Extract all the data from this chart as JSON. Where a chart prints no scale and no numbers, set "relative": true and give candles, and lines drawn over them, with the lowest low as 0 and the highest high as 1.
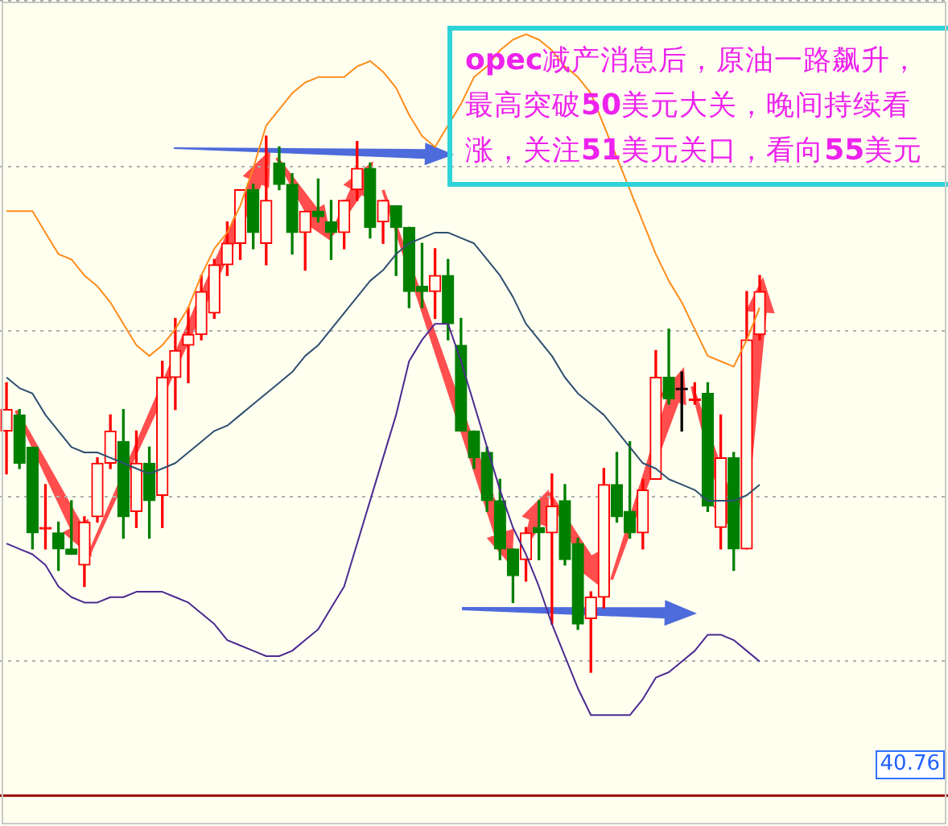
{
  "chart_data": {
    "type": "candlestick",
    "relative": true,
    "grid": "y",
    "legend": false,
    "marker": "none",
    "categories": [
      null,
      null,
      null,
      null,
      null,
      null,
      null,
      null,
      null,
      null,
      null,
      null,
      null,
      null,
      null,
      null,
      null,
      null,
      null,
      null,
      null,
      null,
      null,
      null,
      null,
      null,
      null,
      null,
      null,
      null,
      null,
      null,
      null,
      null,
      null,
      null,
      null,
      null,
      null,
      null,
      null,
      null,
      null,
      null,
      null,
      null,
      null,
      null,
      null,
      null,
      null,
      null,
      null,
      null,
      null,
      null,
      null,
      null,
      null
    ],
    "ohlc": [
      [
        0.45,
        0.54,
        0.37,
        0.49
      ],
      [
        0.48,
        0.49,
        0.38,
        0.39
      ],
      [
        0.42,
        0.42,
        0.23,
        0.26
      ],
      [
        0.27,
        0.35,
        0.23,
        0.27
      ],
      [
        0.26,
        0.28,
        0.19,
        0.23
      ],
      [
        0.23,
        0.32,
        0.22,
        0.22
      ],
      [
        0.2,
        0.29,
        0.16,
        0.28
      ],
      [
        0.29,
        0.4,
        0.28,
        0.39
      ],
      [
        0.39,
        0.48,
        0.38,
        0.45
      ],
      [
        0.43,
        0.49,
        0.25,
        0.29
      ],
      [
        0.3,
        0.45,
        0.27,
        0.39
      ],
      [
        0.39,
        0.42,
        0.25,
        0.32
      ],
      [
        0.33,
        0.58,
        0.27,
        0.55
      ],
      [
        0.55,
        0.66,
        0.49,
        0.6
      ],
      [
        0.61,
        0.68,
        0.54,
        0.63
      ],
      [
        0.63,
        0.74,
        0.62,
        0.71
      ],
      [
        0.67,
        0.77,
        0.66,
        0.76
      ],
      [
        0.76,
        0.84,
        0.74,
        0.8
      ],
      [
        0.8,
        0.9,
        0.77,
        0.9
      ],
      [
        0.9,
        0.91,
        0.79,
        0.82
      ],
      [
        0.8,
        1,
        0.76,
        0.88
      ],
      [
        0.95,
        0.98,
        0.9,
        0.91
      ],
      [
        0.91,
        0.93,
        0.78,
        0.82
      ],
      [
        0.82,
        0.86,
        0.75,
        0.86
      ],
      [
        0.86,
        0.92,
        0.84,
        0.85
      ],
      [
        0.84,
        0.88,
        0.77,
        0.82
      ],
      [
        0.82,
        0.88,
        0.79,
        0.88
      ],
      [
        0.9,
        0.99,
        0.88,
        0.94
      ],
      [
        0.94,
        0.95,
        0.81,
        0.83
      ],
      [
        0.84,
        0.88,
        0.8,
        0.88
      ],
      [
        0.87,
        0.87,
        0.74,
        0.83
      ],
      [
        0.83,
        0.83,
        0.68,
        0.71
      ],
      [
        0.72,
        0.8,
        0.68,
        0.71
      ],
      [
        0.71,
        0.79,
        0.66,
        0.74
      ],
      [
        0.74,
        0.77,
        0.62,
        0.65
      ],
      [
        0.61,
        0.66,
        0.45,
        0.45
      ],
      [
        0.45,
        0.45,
        0.38,
        0.4
      ],
      [
        0.41,
        0.42,
        0.3,
        0.32
      ],
      [
        0.32,
        0.36,
        0.21,
        0.23
      ],
      [
        0.23,
        0.23,
        0.13,
        0.18
      ],
      [
        0.21,
        0.27,
        0.17,
        0.26
      ],
      [
        0.27,
        0.32,
        0.21,
        0.26
      ],
      [
        0.26,
        0.37,
        0.09,
        0.31
      ],
      [
        0.32,
        0.35,
        0.2,
        0.21
      ],
      [
        0.24,
        0.25,
        0.08,
        0.09
      ],
      [
        0.1,
        0.15,
        0,
        0.14
      ],
      [
        0.14,
        0.38,
        0.12,
        0.35
      ],
      [
        0.35,
        0.41,
        0.28,
        0.29
      ],
      [
        0.3,
        0.43,
        0.25,
        0.26
      ],
      [
        0.26,
        0.36,
        0.23,
        0.34
      ],
      [
        0.36,
        0.6,
        0.36,
        0.55
      ],
      [
        0.55,
        0.64,
        0.5,
        0.51
      ],
      [
        0.53,
        0.56,
        0.45,
        0.53
      ],
      [
        0.51,
        0.54,
        0.5,
        0.51
      ],
      [
        0.52,
        0.54,
        0.3,
        0.31
      ],
      [
        0.27,
        0.48,
        0.23,
        0.4
      ],
      [
        0.4,
        0.41,
        0.19,
        0.23
      ],
      [
        0.23,
        0.71,
        0.23,
        0.62
      ],
      [
        0.63,
        0.74,
        0.62,
        0.71
      ]
    ],
    "colors": [
      "#ff0000",
      "#008000",
      "#008000",
      "#ff0000",
      "#008000",
      "#008000",
      "#ff0000",
      "#ff0000",
      "#ff0000",
      "#008000",
      "#ff0000",
      "#008000",
      "#ff0000",
      "#ff0000",
      "#ff0000",
      "#ff0000",
      "#ff0000",
      "#ff0000",
      "#ff0000",
      "#008000",
      "#ff0000",
      "#008000",
      "#008000",
      "#ff0000",
      "#008000",
      "#008000",
      "#ff0000",
      "#ff0000",
      "#008000",
      "#ff0000",
      "#008000",
      "#008000",
      "#008000",
      "#ff0000",
      "#008000",
      "#008000",
      "#008000",
      "#008000",
      "#008000",
      "#008000",
      "#ff0000",
      "#008000",
      "#ff0000",
      "#008000",
      "#008000",
      "#ff0000",
      "#ff0000",
      "#008000",
      "#008000",
      "#ff0000",
      "#ff0000",
      "#008000",
      "#000000",
      "#ff0000",
      "#008000",
      "#ff0000",
      "#008000",
      "#ff0000",
      "#ff0000"
    ],
    "series": [
      {
        "type": "line",
        "color": "#ff8c1a",
        "values": [
          0.86,
          0.86,
          0.86,
          0.82,
          0.78,
          0.77,
          0.74,
          0.72,
          0.69,
          0.65,
          0.61,
          0.59,
          0.61,
          0.64,
          0.68,
          0.74,
          0.79,
          0.82,
          0.87,
          0.94,
          1.02,
          1.05,
          1.08,
          1.1,
          1.11,
          1.11,
          1.11,
          1.13,
          1.14,
          1.12,
          1.09,
          1.04,
          1.0,
          0.98,
          1.02,
          1.06,
          1.11,
          1.13,
          1.16,
          1.18,
          1.19,
          1.18,
          1.16,
          1.13,
          1.11,
          1.08,
          1.02,
          0.96,
          0.9,
          0.84,
          0.78,
          0.73,
          0.69,
          0.64,
          0.59,
          0.58,
          0.57,
          0.62,
          0.68
        ]
      },
      {
        "type": "line",
        "color": "#2f4f6f",
        "values": [
          0.55,
          0.53,
          0.52,
          0.48,
          0.45,
          0.42,
          0.41,
          0.41,
          0.4,
          0.39,
          0.38,
          0.37,
          0.38,
          0.39,
          0.41,
          0.43,
          0.45,
          0.46,
          0.48,
          0.5,
          0.52,
          0.54,
          0.56,
          0.59,
          0.61,
          0.64,
          0.67,
          0.7,
          0.73,
          0.75,
          0.78,
          0.8,
          0.81,
          0.82,
          0.82,
          0.81,
          0.8,
          0.77,
          0.74,
          0.7,
          0.65,
          0.62,
          0.59,
          0.55,
          0.52,
          0.5,
          0.48,
          0.45,
          0.42,
          0.39,
          0.38,
          0.36,
          0.35,
          0.34,
          0.32,
          0.32,
          0.32,
          0.33,
          0.35
        ]
      },
      {
        "type": "line",
        "color": "#4b2a90",
        "values": [
          0.24,
          0.23,
          0.22,
          0.2,
          0.16,
          0.14,
          0.13,
          0.13,
          0.14,
          0.14,
          0.15,
          0.15,
          0.15,
          0.14,
          0.13,
          0.11,
          0.09,
          0.06,
          0.05,
          0.04,
          0.03,
          0.03,
          0.04,
          0.06,
          0.08,
          0.12,
          0.16,
          0.24,
          0.32,
          0.4,
          0.48,
          0.58,
          0.62,
          0.65,
          0.65,
          0.58,
          0.5,
          0.42,
          0.34,
          0.27,
          0.22,
          0.16,
          0.09,
          0.03,
          -0.03,
          -0.08,
          -0.08,
          -0.08,
          -0.08,
          -0.05,
          -0.01,
          0,
          0.02,
          0.04,
          0.07,
          0.07,
          0.06,
          0.04,
          0.02
        ]
      }
    ],
    "ref_lines": [
      {
        "axis": "y",
        "value": -0.23,
        "color": "#990000"
      }
    ],
    "annotations": [
      "opec减产消息后，原油一路飙升，最高突破50美元大关，晚间持续看涨，关注51美元关口，看向55美元",
      "40.76"
    ]
  }
}
